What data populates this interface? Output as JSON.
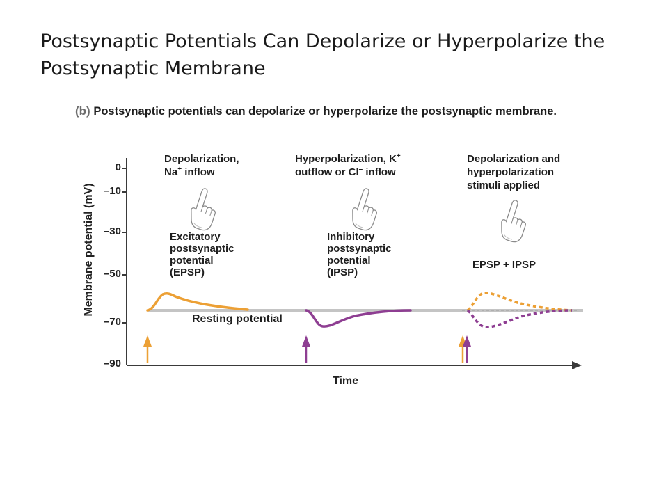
{
  "slide": {
    "title": "Postsynaptic Potentials Can Depolarize or Hyperpolarize the Postsynaptic Membrane"
  },
  "figure": {
    "panel_tag": "(b)",
    "caption": "Postsynaptic potentials can depolarize or hyperpolarize the postsynaptic membrane."
  },
  "stimuli": {
    "depol_line1": "Depolarization,",
    "depol_line2_prefix": "Na",
    "depol_line2_sup": "+",
    "depol_line2_suffix": " inflow",
    "hyper_line1_prefix": "Hyperpolarization, K",
    "hyper_line1_sup": "+",
    "hyper_line2_prefix": "outflow or Cl",
    "hyper_line2_sup": "–",
    "hyper_line2_suffix": " inflow",
    "both_line1": "Depolarization and",
    "both_line2": "hyperpolarization",
    "both_line3": "stimuli applied"
  },
  "responses": {
    "epsp": [
      "Excitatory",
      "postsynaptic",
      "potential",
      "(EPSP)"
    ],
    "ipsp": [
      "Inhibitory",
      "postsynaptic",
      "potential",
      "(IPSP)"
    ],
    "combined": "EPSP + IPSP",
    "resting": "Resting potential"
  },
  "axes": {
    "ylabel": "Membrane potential (mV)",
    "xlabel": "Time",
    "yticks": [
      "0",
      "–10",
      "–30",
      "–50",
      "–70",
      "–90"
    ]
  },
  "colors": {
    "epsp": "#ECA035",
    "ipsp": "#8E3E92",
    "resting": "#C4C4C4",
    "axis": "#3a3a3a"
  },
  "icons": {
    "stimulus": "pointing-hand-icon",
    "stimulus_marker": "arrow-up-icon"
  }
}
